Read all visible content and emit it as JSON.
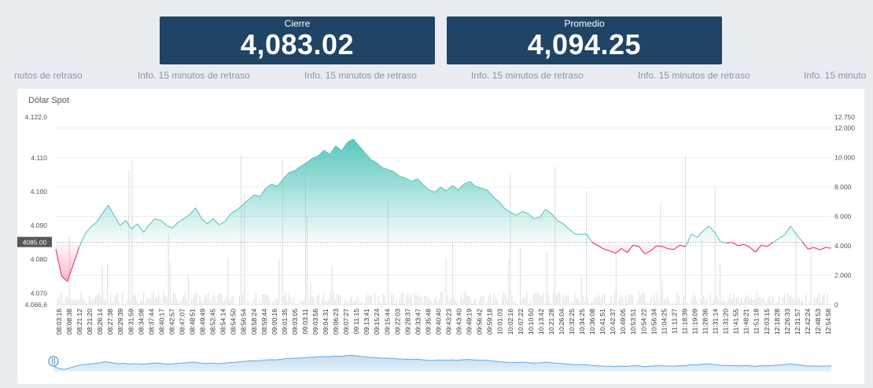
{
  "cards": {
    "cierre": {
      "label": "Cierre",
      "value": "4,083.02"
    },
    "promedio": {
      "label": "Promedio",
      "value": "4,094.25"
    }
  },
  "ticker": {
    "items": [
      "nutos de retraso",
      "Info. 15 minutos de retraso",
      "Info. 15 minutos de retraso",
      "Info. 15 minutos de retraso",
      "Info. 15 minutos de retraso",
      "Info. 15 minuto"
    ]
  },
  "panel": {
    "title": "Dólar Spot"
  },
  "colors": {
    "up_line": "#5cc7c0",
    "down_line": "#e8336a",
    "card_bg": "#1f4466",
    "volume": "#cfcfcf",
    "navigator_line": "#6aa9d6",
    "navigator_fill": "#d3e7f7"
  },
  "chart_data": {
    "type": "area",
    "reference_value": 4085.0,
    "reference_label": "4085.00",
    "y_left": {
      "ticks": [
        4070,
        4080,
        4090,
        4100,
        4110
      ],
      "tick_labels": [
        "4.070",
        "4.080",
        "4.090",
        "4.100",
        "4.110"
      ],
      "top_label": "4.122,0",
      "bottom_label": "4.066,6",
      "range": [
        4066.6,
        4122.0
      ]
    },
    "y_right": {
      "ticks": [
        0,
        2000,
        4000,
        6000,
        8000,
        10000,
        12000
      ],
      "tick_labels": [
        "0",
        "2.000",
        "4.000",
        "6.000",
        "8.000",
        "10.000",
        "12.000"
      ],
      "top_label": "12.750",
      "range": [
        0,
        12750
      ]
    },
    "x_labels": [
      "08:03:16",
      "08:08:38",
      "08:21:12",
      "08:21:20",
      "08:26:14",
      "08:27:38",
      "08:29:39",
      "08:31:59",
      "08:34:08",
      "08:37:44",
      "08:40:17",
      "08:42:57",
      "08:47:07",
      "08:48:51",
      "08:49:49",
      "08:52:45",
      "08:54:14",
      "08:54:50",
      "08:56:54",
      "08:58:24",
      "08:59:44",
      "09:00:16",
      "09:01:35",
      "09:03:05",
      "09:03:11",
      "09:03:56",
      "09:04:31",
      "09:06:23",
      "09:07:27",
      "09:11:15",
      "09:13:41",
      "09:15:24",
      "09:15:44",
      "09:22:03",
      "09:28:37",
      "09:33:47",
      "09:35:48",
      "09:40:40",
      "09:43:23",
      "09:43:40",
      "09:49:19",
      "09:56:42",
      "09:59:18",
      "10:01:03",
      "10:02:16",
      "10:07:22",
      "10:10:50",
      "10:13:42",
      "10:21:28",
      "10:26:04",
      "10:32:25",
      "10:34:25",
      "10:36:08",
      "10:41:51",
      "10:42:37",
      "10:49:05",
      "10:53:51",
      "10:54:22",
      "10:56:34",
      "11:04:25",
      "11:11:27",
      "11:18:39",
      "11:19:09",
      "11:28:36",
      "11:31:14",
      "11:31:20",
      "11:41:55",
      "11:48:21",
      "11:51:18",
      "12:03:15",
      "12:18:28",
      "12:26:33",
      "12:31:57",
      "12:42:24",
      "12:48:53",
      "12:54:58"
    ],
    "price": [
      4083.0,
      4075.0,
      4073.5,
      4078.5,
      4083.6,
      4087.5,
      4089.6,
      4091.0,
      4093.6,
      4096.0,
      4093.0,
      4090.0,
      4091.5,
      4089.0,
      4090.5,
      4088.0,
      4090.2,
      4092.0,
      4091.5,
      4090.0,
      4089.2,
      4091.0,
      4092.0,
      4093.3,
      4095.2,
      4092.0,
      4090.5,
      4092.0,
      4090.2,
      4091.2,
      4093.5,
      4094.5,
      4096.0,
      4097.5,
      4099.0,
      4098.5,
      4101.0,
      4102.2,
      4101.5,
      4103.8,
      4105.6,
      4106.2,
      4107.5,
      4108.5,
      4109.8,
      4110.5,
      4112.2,
      4111.0,
      4113.5,
      4112.0,
      4114.5,
      4115.5,
      4113.5,
      4111.5,
      4109.5,
      4108.5,
      4107.0,
      4106.5,
      4105.8,
      4104.5,
      4104.0,
      4103.0,
      4103.8,
      4102.0,
      4100.5,
      4099.8,
      4101.3,
      4100.2,
      4101.8,
      4100.5,
      4102.2,
      4103.0,
      4101.5,
      4101.0,
      4100.5,
      4098.5,
      4097.0,
      4095.0,
      4093.8,
      4093.0,
      4094.2,
      4093.5,
      4092.0,
      4092.5,
      4094.8,
      4093.5,
      4091.5,
      4090.5,
      4089.0,
      4087.5,
      4087.4,
      4087.5,
      4085.0,
      4084.0,
      4083.0,
      4082.5,
      4081.8,
      4083.2,
      4082.0,
      4084.2,
      4083.8,
      4081.6,
      4082.5,
      4084.0,
      4083.8,
      4083.1,
      4082.9,
      4084.2,
      4083.7,
      4087.5,
      4086.5,
      4088.4,
      4089.8,
      4088.0,
      4085.2,
      4084.8,
      4085.0,
      4084.0,
      4084.4,
      4083.6,
      4082.1,
      4084.2,
      4083.8,
      4085.0,
      4086.2,
      4087.2,
      4089.8,
      4087.5,
      4085.2,
      4083.0,
      4083.5,
      4082.8,
      4083.5,
      4083.3
    ],
    "volume_note": "Volume bars shown on right axis"
  },
  "navigator": {
    "present": true
  }
}
